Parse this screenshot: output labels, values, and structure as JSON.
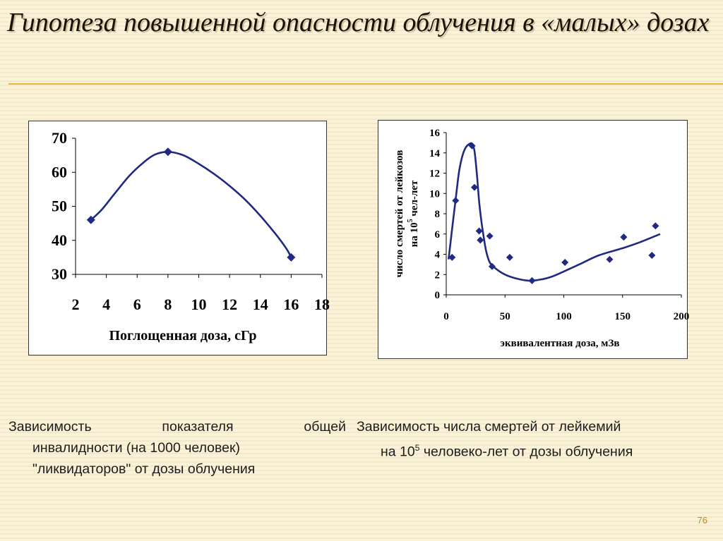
{
  "slide": {
    "title": "Гипотеза повышенной опасности облучения в «малых» дозах",
    "page_number": "76",
    "accent_color": "#e8b640"
  },
  "captions": {
    "left_line1": "Зависимость показателя общей",
    "left_line2": "инвалидности (на 1000 человек)",
    "left_line3": "\"ликвидаторов\" от дозы облучения",
    "right_line1": "Зависимость числа смертей от лейкемий",
    "right_line2_pre": "на 10",
    "right_line2_sup": "5",
    "right_line2_post": " человеко-лет от дозы облучения"
  },
  "chart_data": [
    {
      "type": "line",
      "xlabel": "Поглощенная доза, сГр",
      "ylabel": "",
      "xlim": [
        2,
        18
      ],
      "ylim": [
        30,
        70
      ],
      "x_ticks": [
        "2",
        "4",
        "6",
        "8",
        "10",
        "12",
        "14",
        "16",
        "18"
      ],
      "y_ticks": [
        "30",
        "40",
        "50",
        "60",
        "70"
      ],
      "grid": false,
      "line_color": "#1f2a80",
      "points": [
        [
          3,
          46
        ],
        [
          8,
          66
        ],
        [
          16,
          35
        ]
      ],
      "curve": [
        [
          3,
          46
        ],
        [
          3.7,
          49
        ],
        [
          4.5,
          53.5
        ],
        [
          5.5,
          59
        ],
        [
          6.5,
          63.2
        ],
        [
          7.2,
          65.3
        ],
        [
          8,
          66
        ],
        [
          9,
          65
        ],
        [
          10,
          62.5
        ],
        [
          11,
          59.5
        ],
        [
          12,
          56
        ],
        [
          13,
          52
        ],
        [
          14,
          47.2
        ],
        [
          15,
          41.8
        ],
        [
          15.7,
          37.5
        ],
        [
          16,
          35
        ]
      ]
    },
    {
      "type": "scatter",
      "xlabel": "эквивалентная доза, мЗв",
      "ylabel_line1": "число смертей от лейкозов",
      "ylabel_line2_pre": "на 10",
      "ylabel_line2_sup": "5",
      "ylabel_line2_post": " чел-лет",
      "xlim": [
        0,
        200
      ],
      "ylim": [
        0,
        16
      ],
      "x_ticks": [
        "0",
        "50",
        "100",
        "150",
        "200"
      ],
      "y_ticks": [
        "0",
        "2",
        "4",
        "6",
        "8",
        "10",
        "12",
        "14",
        "16"
      ],
      "grid": false,
      "marker_color": "#1f2a80",
      "points": [
        [
          5,
          3.7
        ],
        [
          8,
          9.3
        ],
        [
          22,
          14.7
        ],
        [
          24,
          10.6
        ],
        [
          28,
          6.3
        ],
        [
          29,
          5.4
        ],
        [
          37,
          5.8
        ],
        [
          39,
          2.8
        ],
        [
          54,
          3.7
        ],
        [
          73,
          1.4
        ],
        [
          101,
          3.2
        ],
        [
          139,
          3.5
        ],
        [
          151,
          5.7
        ],
        [
          175,
          3.9
        ],
        [
          178,
          6.8
        ]
      ],
      "trend_curve": [
        [
          2,
          3.5
        ],
        [
          5,
          6.5
        ],
        [
          8,
          9.4
        ],
        [
          11,
          12.2
        ],
        [
          14,
          13.8
        ],
        [
          17,
          14.6
        ],
        [
          20,
          14.9
        ],
        [
          22,
          14.9
        ],
        [
          24,
          14.2
        ],
        [
          26,
          12
        ],
        [
          28,
          9.2
        ],
        [
          30,
          7.2
        ],
        [
          32,
          5.6
        ],
        [
          34,
          4.3
        ],
        [
          37,
          3.2
        ],
        [
          42,
          2.6
        ],
        [
          50,
          2.0
        ],
        [
          60,
          1.6
        ],
        [
          70,
          1.4
        ],
        [
          80,
          1.5
        ],
        [
          90,
          1.8
        ],
        [
          100,
          2.3
        ],
        [
          115,
          3.1
        ],
        [
          130,
          3.9
        ],
        [
          150,
          4.6
        ],
        [
          165,
          5.2
        ],
        [
          182,
          6.0
        ]
      ]
    }
  ]
}
